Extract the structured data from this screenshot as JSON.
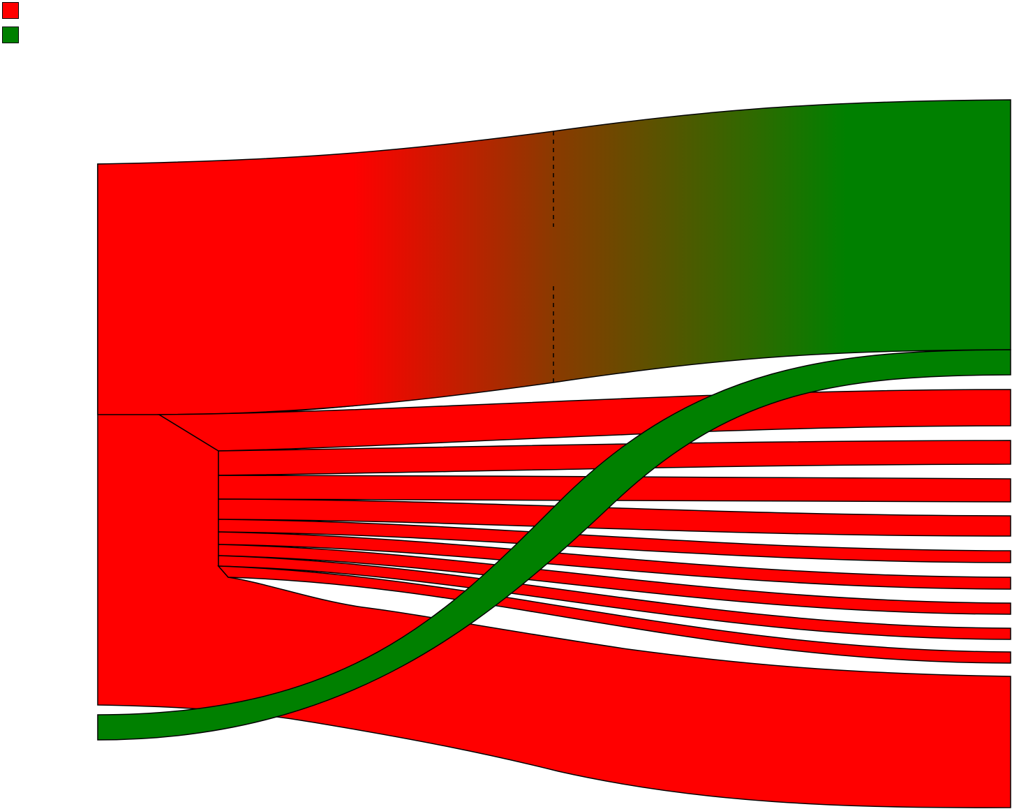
{
  "colors": {
    "red": "#ff0000",
    "green": "#008000",
    "stroke": "#000000",
    "background": "#ffffff"
  },
  "legend": [
    {
      "color": "#ff0000"
    },
    {
      "color": "#008000"
    }
  ],
  "chart_data": {
    "type": "sankey",
    "gradient_flow": {
      "from_color": "#ff0000",
      "to_color": "#008000",
      "dashed_divider": true
    },
    "flows": [
      {
        "color": "gradient",
        "from": "left-red-block",
        "to": "right-green-block"
      },
      {
        "color": "#ff0000",
        "from": "left-red-block",
        "to": "right-red-1"
      },
      {
        "color": "#ff0000",
        "from": "left-red-block",
        "to": "right-red-2"
      },
      {
        "color": "#ff0000",
        "from": "left-red-block",
        "to": "right-red-3"
      },
      {
        "color": "#ff0000",
        "from": "left-red-block",
        "to": "right-red-4"
      },
      {
        "color": "#ff0000",
        "from": "left-red-block",
        "to": "right-red-5"
      },
      {
        "color": "#ff0000",
        "from": "left-red-block",
        "to": "right-red-6"
      },
      {
        "color": "#ff0000",
        "from": "left-red-block",
        "to": "right-red-7"
      },
      {
        "color": "#ff0000",
        "from": "left-red-block",
        "to": "right-red-8"
      },
      {
        "color": "#ff0000",
        "from": "left-red-block",
        "to": "right-red-9"
      },
      {
        "color": "#ff0000",
        "from": "left-red-block",
        "to": "right-red-10"
      },
      {
        "color": "#008000",
        "from": "left-green-block",
        "to": "right-green-small"
      }
    ]
  }
}
